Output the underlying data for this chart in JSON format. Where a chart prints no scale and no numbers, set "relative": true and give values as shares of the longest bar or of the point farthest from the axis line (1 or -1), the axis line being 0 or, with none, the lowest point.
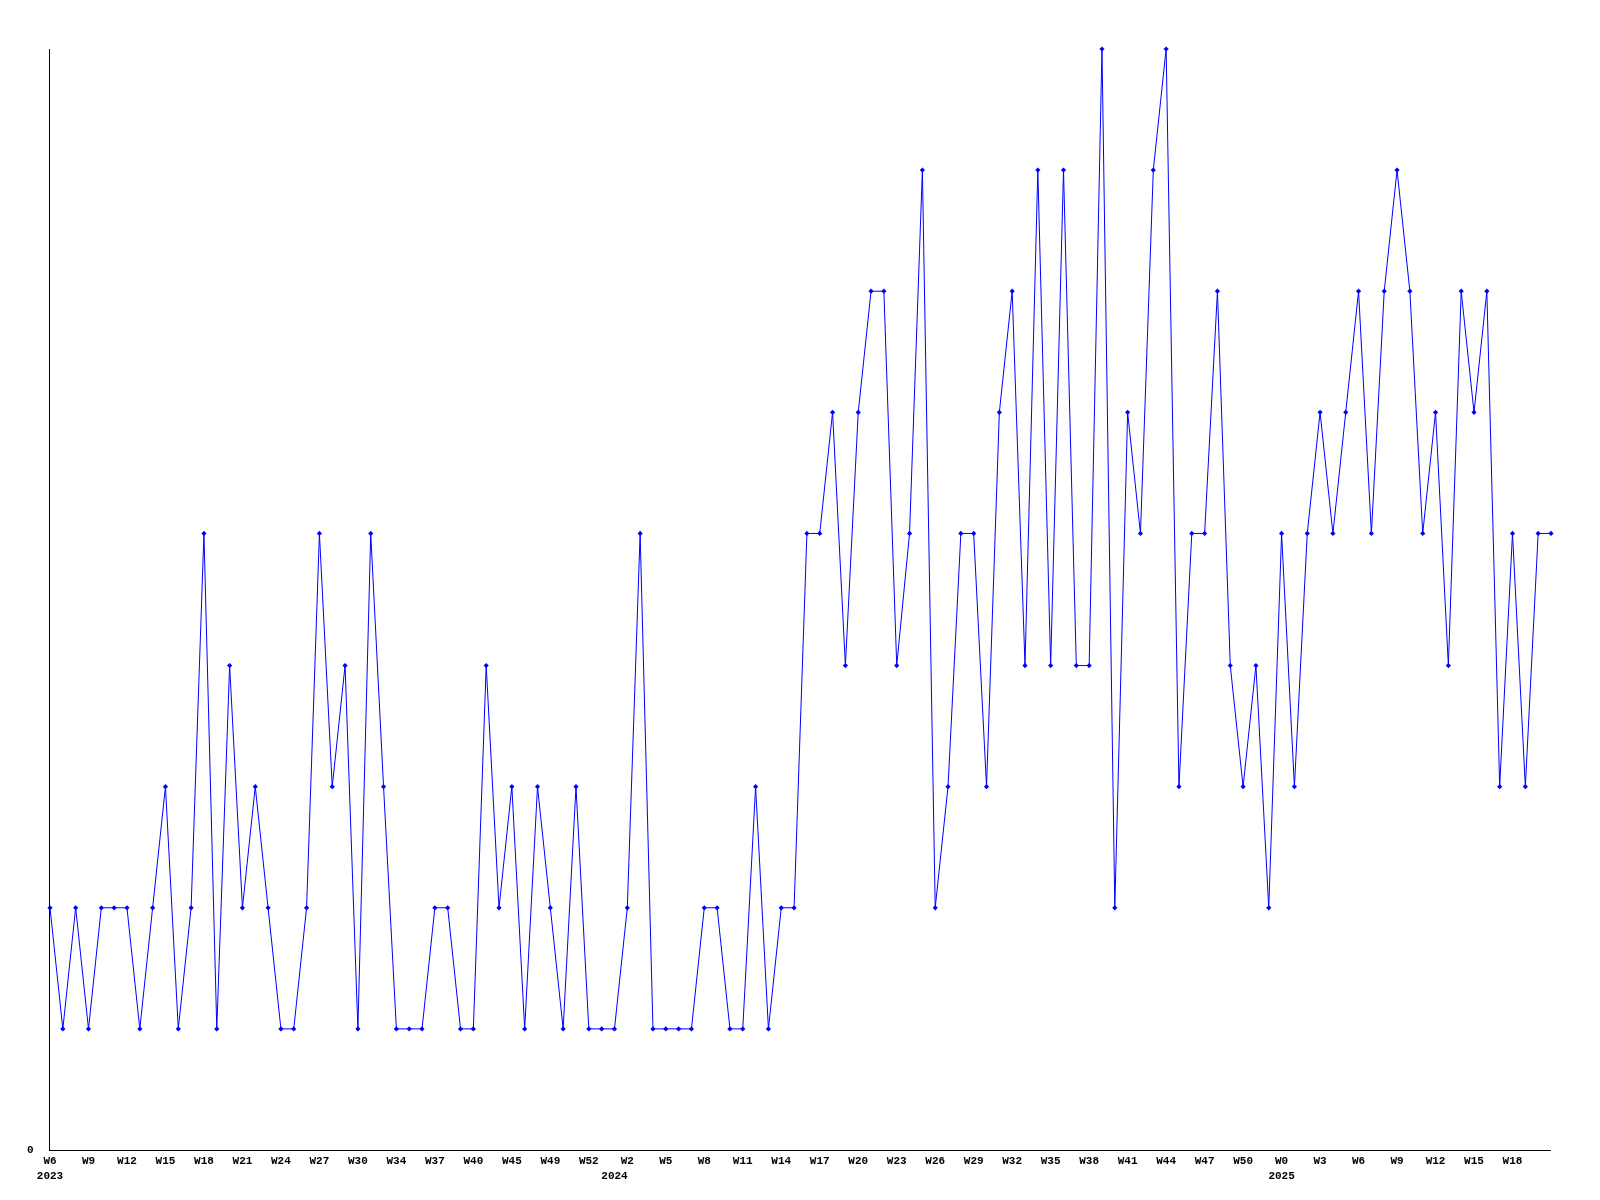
{
  "chart_data": {
    "type": "line",
    "relative": true,
    "color": "#0000ff",
    "marker": "diamond",
    "line_style": "solid",
    "grid": false,
    "legend": false,
    "annotations": [
      "0"
    ],
    "categories": [
      "W6\n2023",
      null,
      null,
      "W9",
      null,
      null,
      "W12",
      null,
      null,
      "W15",
      null,
      null,
      "W18",
      null,
      null,
      "W21",
      null,
      null,
      "W24",
      null,
      null,
      "W27",
      null,
      null,
      "W30",
      null,
      null,
      "W34",
      null,
      null,
      "W37",
      null,
      null,
      "W40",
      null,
      null,
      "W45",
      null,
      null,
      "W49",
      null,
      null,
      "W52",
      null,
      "\n2024",
      "W2",
      null,
      null,
      "W5",
      null,
      null,
      "W8",
      null,
      null,
      "W11",
      null,
      null,
      "W14",
      null,
      null,
      "W17",
      null,
      null,
      "W20",
      null,
      null,
      "W23",
      null,
      null,
      "W26",
      null,
      null,
      "W29",
      null,
      null,
      "W32",
      null,
      null,
      "W35",
      null,
      null,
      "W38",
      null,
      null,
      "W41",
      null,
      null,
      "W44",
      null,
      null,
      "W47",
      null,
      null,
      "W50",
      null,
      null,
      "W0\n2025",
      null,
      null,
      "W3",
      null,
      null,
      "W6",
      null,
      null,
      "W9",
      null,
      null,
      "W12",
      null,
      null,
      "W15",
      null,
      null,
      "W18",
      null,
      null,
      null
    ],
    "values": [
      0.22,
      0.11,
      0.22,
      0.11,
      0.22,
      0.22,
      0.22,
      0.11,
      0.22,
      0.33,
      0.11,
      0.22,
      0.56,
      0.11,
      0.44,
      0.22,
      0.33,
      0.22,
      0.11,
      0.11,
      0.22,
      0.56,
      0.33,
      0.44,
      0.11,
      0.56,
      0.33,
      0.11,
      0.11,
      0.11,
      0.22,
      0.22,
      0.11,
      0.11,
      0.44,
      0.22,
      0.33,
      0.11,
      0.33,
      0.22,
      0.11,
      0.33,
      0.11,
      0.11,
      0.11,
      0.22,
      0.56,
      0.11,
      0.11,
      0.11,
      0.11,
      0.22,
      0.22,
      0.11,
      0.11,
      0.33,
      0.11,
      0.22,
      0.22,
      0.56,
      0.56,
      0.67,
      0.44,
      0.67,
      0.78,
      0.78,
      0.44,
      0.56,
      0.89,
      0.22,
      0.33,
      0.56,
      0.56,
      0.33,
      0.67,
      0.78,
      0.44,
      0.89,
      0.44,
      0.89,
      0.44,
      0.44,
      1,
      0.22,
      0.67,
      0.56,
      0.89,
      1,
      0.33,
      0.56,
      0.56,
      0.78,
      0.44,
      0.33,
      0.44,
      0.22,
      0.56,
      0.33,
      0.56,
      0.67,
      0.56,
      0.67,
      0.78,
      0.56,
      0.78,
      0.89,
      0.78,
      0.56,
      0.67,
      0.44,
      0.78,
      0.67,
      0.78,
      0.33,
      0.56,
      0.33,
      0.56,
      0.56
    ]
  }
}
